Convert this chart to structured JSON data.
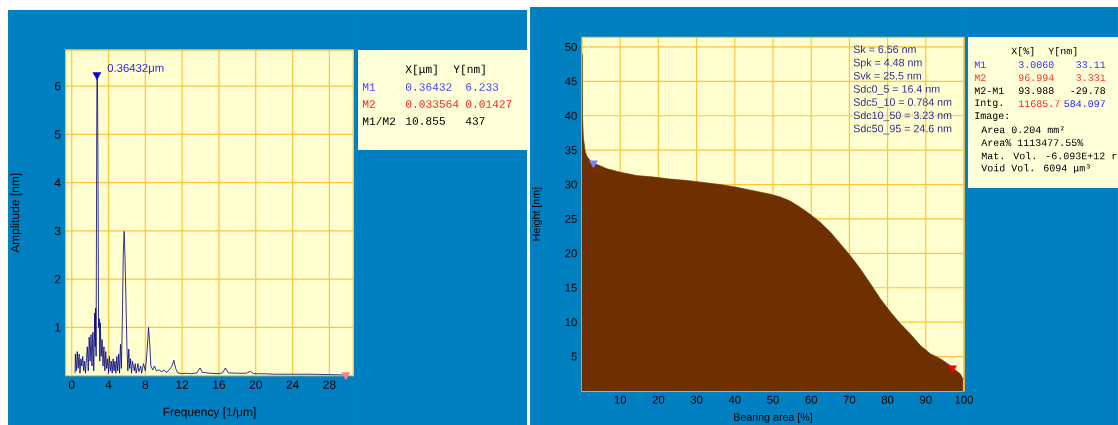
{
  "chart_data": [
    {
      "type": "line",
      "xlabel": "Frequency [1/μm]",
      "ylabel": "Amplitude [nm]",
      "xlim": [
        -0.65,
        30.6
      ],
      "ylim": [
        0,
        6.75
      ],
      "xticks": [
        0,
        4,
        8,
        12,
        16,
        20,
        24,
        28
      ],
      "yticks": [
        1,
        2,
        3,
        4,
        5,
        6
      ],
      "grid": true,
      "annotations": [
        {
          "text": "0.36432μm",
          "x": 2.745,
          "y": 6.233
        }
      ],
      "x": [
        0.36,
        0.4,
        0.5,
        0.6,
        0.7,
        0.8,
        0.9,
        1.0,
        1.1,
        1.2,
        1.3,
        1.4,
        1.5,
        1.6,
        1.7,
        1.8,
        1.9,
        2.0,
        2.1,
        2.2,
        2.3,
        2.4,
        2.5,
        2.55,
        2.6,
        2.65,
        2.68,
        2.72,
        2.745,
        2.8,
        2.86,
        2.92,
        3.0,
        3.05,
        3.1,
        3.2,
        3.3,
        3.4,
        3.5,
        3.6,
        3.7,
        3.8,
        3.9,
        4.0,
        4.1,
        4.2,
        4.3,
        4.4,
        4.5,
        4.6,
        4.7,
        4.8,
        4.9,
        5.0,
        5.1,
        5.2,
        5.3,
        5.4,
        5.5,
        5.6,
        5.7,
        5.8,
        5.9,
        6.0,
        6.1,
        6.2,
        6.3,
        6.4,
        6.5,
        6.6,
        6.8,
        6.9,
        7.0,
        7.2,
        7.3,
        7.5,
        7.6,
        7.8,
        8.0,
        8.1,
        8.2,
        8.35,
        8.5,
        8.6,
        8.8,
        9.0,
        9.2,
        9.5,
        9.8,
        10.0,
        10.3,
        10.6,
        10.9,
        11.1,
        11.3,
        11.5,
        12.0,
        12.5,
        13.0,
        13.6,
        13.95,
        14.2,
        15.0,
        16.0,
        16.4,
        16.7,
        17.0,
        18.0,
        19.0,
        19.4,
        19.8,
        21.0,
        22.0,
        26.0,
        29.79
      ],
      "series": [
        {
          "color": "#000080",
          "values": [
            0.05,
            0.45,
            0.1,
            0.5,
            0.15,
            0.45,
            0.05,
            0.35,
            0.2,
            0.4,
            0.1,
            0.3,
            0.05,
            0.35,
            0.6,
            0.1,
            0.8,
            0.3,
            0.85,
            0.2,
            0.9,
            0.1,
            1.3,
            0.6,
            1.4,
            0.4,
            2.2,
            5.15,
            6.233,
            6.2,
            4.0,
            1.0,
            1.18,
            0.3,
            1.1,
            0.4,
            0.75,
            0.2,
            0.6,
            0.1,
            0.5,
            0.15,
            0.35,
            0.05,
            0.4,
            0.1,
            0.3,
            0.05,
            0.35,
            0.1,
            0.3,
            0.05,
            0.4,
            0.1,
            0.45,
            0.05,
            0.65,
            0.15,
            1.1,
            2.5,
            2.99,
            2.4,
            1.5,
            0.6,
            0.1,
            0.55,
            0.15,
            0.35,
            0.05,
            0.3,
            0.1,
            0.25,
            0.05,
            0.25,
            0.08,
            0.2,
            0.05,
            0.25,
            0.1,
            0.3,
            0.55,
            1.0,
            0.6,
            0.2,
            0.12,
            0.2,
            0.1,
            0.12,
            0.08,
            0.12,
            0.07,
            0.12,
            0.2,
            0.32,
            0.15,
            0.06,
            0.04,
            0.05,
            0.04,
            0.06,
            0.16,
            0.07,
            0.05,
            0.04,
            0.06,
            0.16,
            0.06,
            0.05,
            0.05,
            0.09,
            0.04,
            0.04,
            0.03,
            0.03,
            0.01427
          ]
        },
        {
          "type": "scatter",
          "marker": "triangle",
          "color": "#0000d8",
          "x": [
            2.745
          ],
          "values": [
            6.233
          ]
        },
        {
          "type": "scatter",
          "marker": "triangle",
          "color": "#ff8080",
          "x": [
            29.79
          ],
          "values": [
            0.01427
          ]
        }
      ]
    },
    {
      "type": "other",
      "categories": [
        "X[μm]",
        "Y[nm]"
      ],
      "series": [
        {
          "name": "M1",
          "color": "#4040ff",
          "values": [
            0.36432,
            6.233
          ],
          "value_labels": [
            "0.36432",
            "6.233"
          ]
        },
        {
          "name": "M2",
          "color": "#ff2020",
          "values": [
            0.033564,
            0.01427
          ],
          "value_labels": [
            "0.033564",
            "0.01427"
          ]
        },
        {
          "name": "M1/M2",
          "color": "#000000",
          "values": [
            10.855,
            437
          ],
          "value_labels": [
            "10.855",
            "437"
          ]
        }
      ]
    },
    {
      "type": "area",
      "xlabel": "Bearing area [%]",
      "ylabel": "Height [nm]",
      "xlim": [
        0,
        100
      ],
      "ylim": [
        0,
        51.4
      ],
      "xticks": [
        10,
        20,
        30,
        40,
        50,
        60,
        70,
        80,
        90,
        100
      ],
      "yticks": [
        5,
        10,
        15,
        20,
        25,
        30,
        35,
        40,
        45,
        50
      ],
      "grid": true,
      "annotations": [
        "Sk = 6.56 nm",
        "Spk = 4.48 nm",
        "Svk = 25.5 nm",
        "Sdc0_5 = 16.4 nm",
        "Sdc5_10 = 0.784 nm",
        "Sdc10_50 = 3.23 nm",
        "Sdc50_95 = 24.6 nm"
      ],
      "x": [
        0,
        0.1,
        0.35,
        0.8,
        1.2,
        2.1,
        3.006,
        4.7,
        6.5,
        10,
        14.3,
        18.7,
        23,
        27.4,
        31.8,
        36.2,
        40.5,
        44.9,
        49.3,
        51.9,
        54.5,
        57.1,
        59.7,
        62.4,
        65,
        67.6,
        70.2,
        72.8,
        75.5,
        78.1,
        80.7,
        83.3,
        85.9,
        88.6,
        91.2,
        93.8,
        96.4,
        96.994,
        99,
        99.7
      ],
      "series": [
        {
          "color": "#6e3000",
          "values": [
            49,
            40.2,
            36.9,
            34.9,
            34.2,
            33.5,
            33.11,
            32.75,
            32.3,
            31.8,
            31.3,
            31.1,
            30.8,
            30.6,
            30.3,
            30.0,
            29.6,
            29.1,
            28.6,
            28.2,
            27.6,
            26.7,
            25.7,
            24.5,
            23.1,
            21.4,
            19.7,
            17.8,
            15.6,
            13.4,
            11.5,
            9.8,
            8.3,
            6.6,
            5.4,
            4.7,
            3.7,
            3.331,
            2.5,
            1.8
          ]
        },
        {
          "type": "scatter",
          "marker": "triangle",
          "color": "#8080ff",
          "x": [
            3.006
          ],
          "values": [
            33.11
          ]
        },
        {
          "type": "scatter",
          "marker": "triangle",
          "color": "#ff0000",
          "x": [
            96.994
          ],
          "values": [
            3.331
          ]
        }
      ]
    },
    {
      "type": "other",
      "categories": [
        "X[%]",
        "Y[nm]"
      ],
      "series": [
        {
          "name": "M1",
          "color": "#3030ff",
          "values": [
            3.006,
            33.11
          ],
          "value_labels": [
            "3.0060",
            "33.11"
          ]
        },
        {
          "name": "M2",
          "color": "#ff3030",
          "values": [
            96.994,
            3.331
          ],
          "value_labels": [
            "96.994",
            "3.331"
          ]
        },
        {
          "name": "M2-M1",
          "color": "#000000",
          "values": [
            93.988,
            -29.78
          ],
          "value_labels": [
            "93.988",
            "-29.78"
          ]
        },
        {
          "name": "Intg.",
          "color": "#000000",
          "colors": [
            "#ff2020",
            "#2020ff"
          ],
          "values": [
            11685.7,
            584.097
          ],
          "value_labels": [
            "11685.7",
            "584.097"
          ]
        }
      ],
      "annotations": [
        "Image:",
        "Area 0.204 mm²",
        "Area% 1113477.55%",
        "Mat. Vol. -6.093E+12 r",
        "Void Vol. 6094 μm³"
      ]
    }
  ]
}
